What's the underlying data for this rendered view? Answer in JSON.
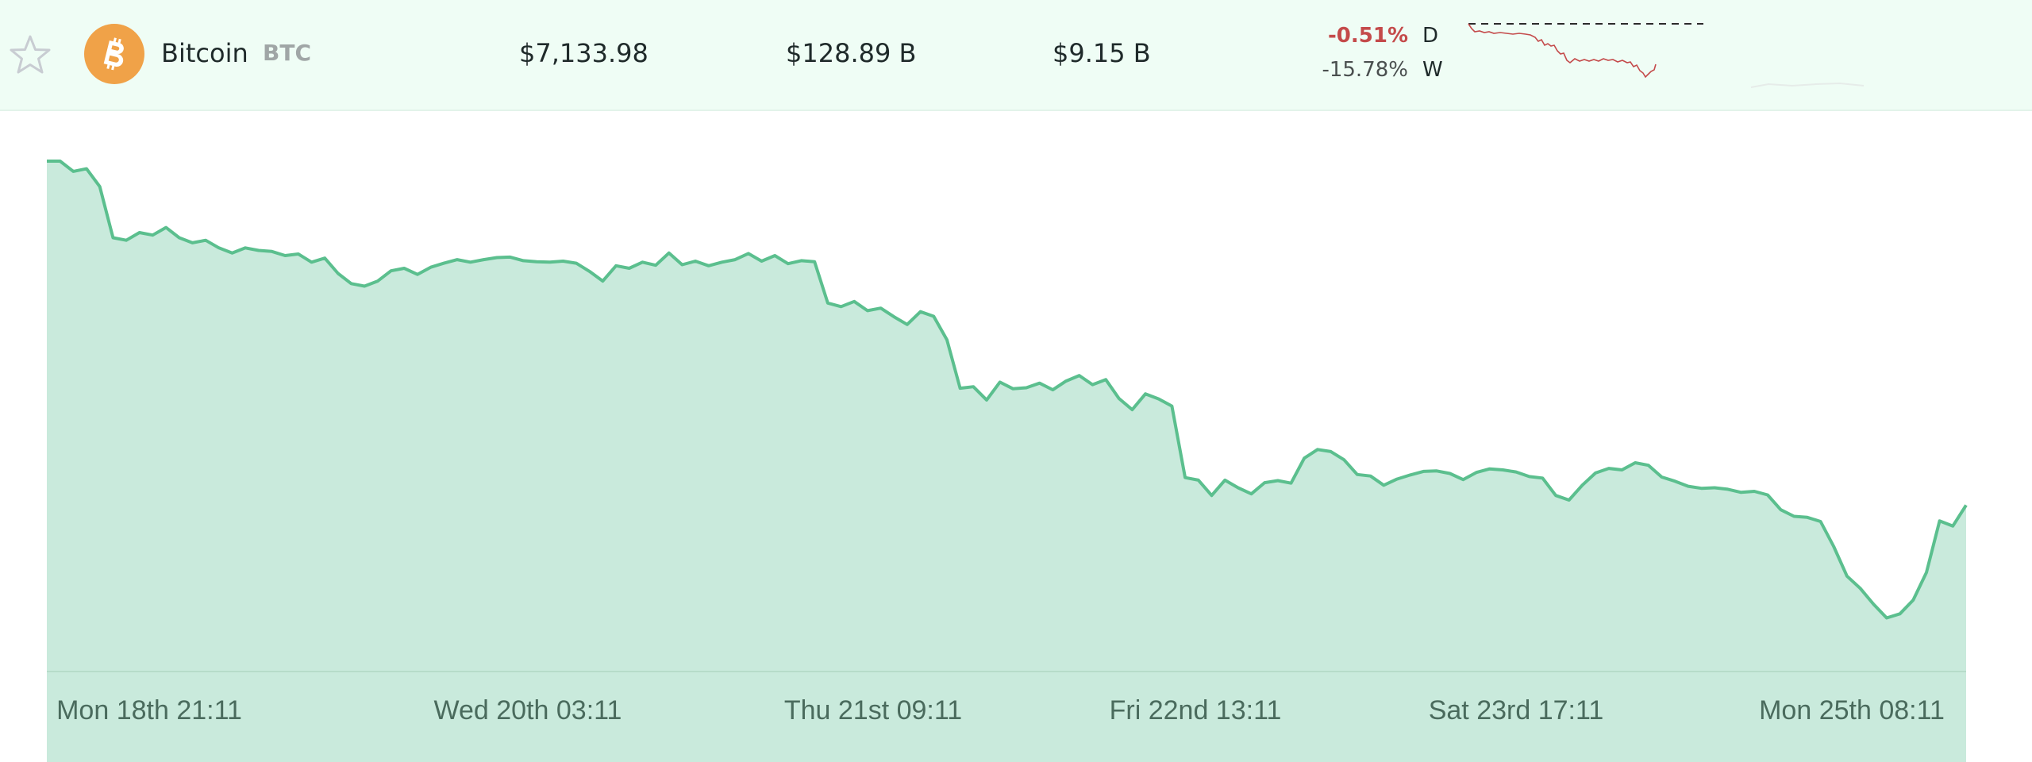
{
  "coin": {
    "name": "Bitcoin",
    "symbol": "BTC",
    "icon": "bitcoin-logo-icon",
    "logo_color": "#f0a248",
    "price": "$7,133.98",
    "market_cap": "$128.89 B",
    "volume": "$9.15 B",
    "change_day": "-0.51%",
    "change_day_label": "D",
    "change_week": "-15.78%",
    "change_week_label": "W",
    "negative_color": "#c44a4a",
    "favorite_icon": "star-outline-icon"
  },
  "chart_data": {
    "type": "area",
    "title": "",
    "xlabel": "",
    "ylabel": "",
    "line_color": "#5bbf8e",
    "fill_color": "#c9eadc",
    "grid": false,
    "legend": "none",
    "x_ticks": [
      "Mon 18th 21:11",
      "Wed 20th 03:11",
      "Thu 21st 09:11",
      "Fri 22nd 13:11",
      "Sat 23rd 17:11",
      "Mon 25th 08:11"
    ],
    "ylim": [
      0,
      100
    ],
    "values": [
      100,
      100,
      98,
      98.5,
      95,
      85,
      84.5,
      86,
      85.5,
      87,
      85,
      84,
      84.5,
      83,
      82,
      83,
      82.5,
      82.3,
      81.5,
      81.8,
      80.2,
      81,
      78,
      76,
      75.5,
      76.5,
      78.5,
      79,
      77.8,
      79.2,
      80,
      80.7,
      80.2,
      80.7,
      81.1,
      81.2,
      80.5,
      80.3,
      80.2,
      80.4,
      80,
      78.4,
      76.5,
      79.5,
      79,
      80.2,
      79.6,
      82,
      79.7,
      80.4,
      79.5,
      80.2,
      80.7,
      81.9,
      80.4,
      81.5,
      79.9,
      80.5,
      80.3,
      72.2,
      71.5,
      72.5,
      70.7,
      71.2,
      69.5,
      68,
      70.5,
      69.6,
      65,
      55.5,
      55.8,
      53.2,
      56.7,
      55.4,
      55.6,
      56.5,
      55.2,
      56.9,
      58,
      56.2,
      57.2,
      53.5,
      51.3,
      54.4,
      53.4,
      52,
      38,
      37.5,
      34.5,
      37.5,
      36,
      34.8,
      37,
      37.4,
      36.9,
      41.8,
      43.5,
      43.1,
      41.5,
      38.6,
      38.3,
      36.5,
      37.7,
      38.5,
      39.2,
      39.3,
      38.8,
      37.6,
      39,
      39.7,
      39.5,
      39.1,
      38.2,
      37.9,
      34.5,
      33.6,
      36.5,
      38.9,
      39.8,
      39.5,
      40.9,
      40.4,
      38.1,
      37.3,
      36.3,
      35.9,
      36,
      35.7,
      35.1,
      35.3,
      34.6,
      31.7,
      30.4,
      30.2,
      29.4,
      24.5,
      18.7,
      16.3,
      13.2,
      10.5,
      11.3,
      14,
      19.4,
      29.5,
      28.5,
      32.6
    ]
  }
}
